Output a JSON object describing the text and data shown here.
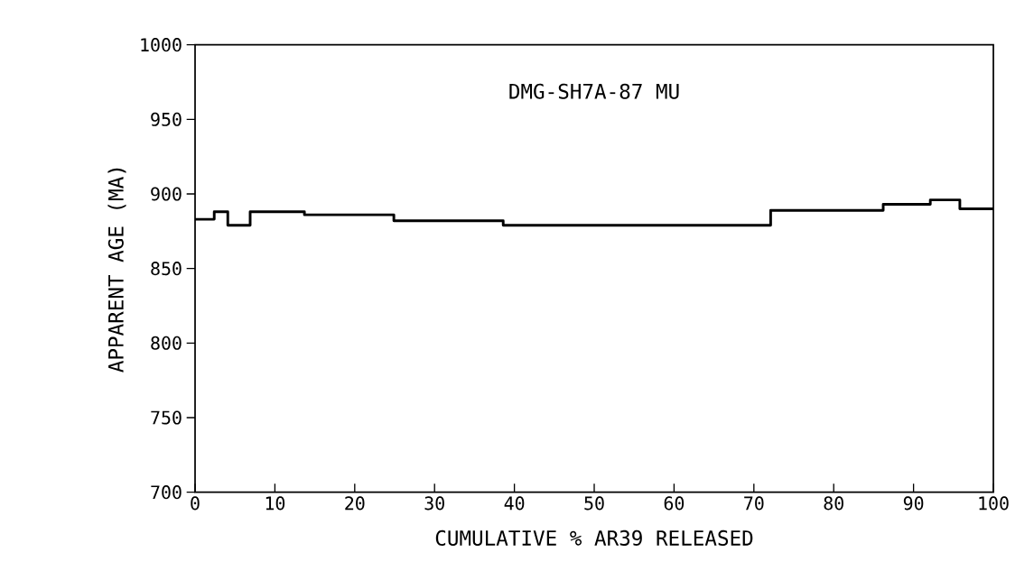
{
  "chart_data": {
    "type": "step",
    "title": "DMG-SH7A-87 MU",
    "xlabel": "CUMULATIVE % AR39 RELEASED",
    "ylabel": "APPARENT AGE (MA)",
    "x": [
      0,
      2.4,
      4.1,
      6.9,
      13.7,
      24.9,
      38.6,
      72.1,
      86.2,
      92.1,
      95.8,
      100
    ],
    "series": [
      {
        "color": "#000000",
        "values": [
          883,
          888,
          879,
          888,
          886,
          882,
          879,
          889,
          893,
          896,
          890,
          890
        ]
      }
    ],
    "xlim": [
      0,
      100
    ],
    "ylim": [
      700,
      1000
    ],
    "xticks": [
      0,
      10,
      20,
      30,
      40,
      50,
      60,
      70,
      80,
      90,
      100
    ],
    "yticks": [
      700,
      750,
      800,
      850,
      900,
      950,
      1000
    ],
    "marker": "none",
    "line_style": "solid"
  }
}
